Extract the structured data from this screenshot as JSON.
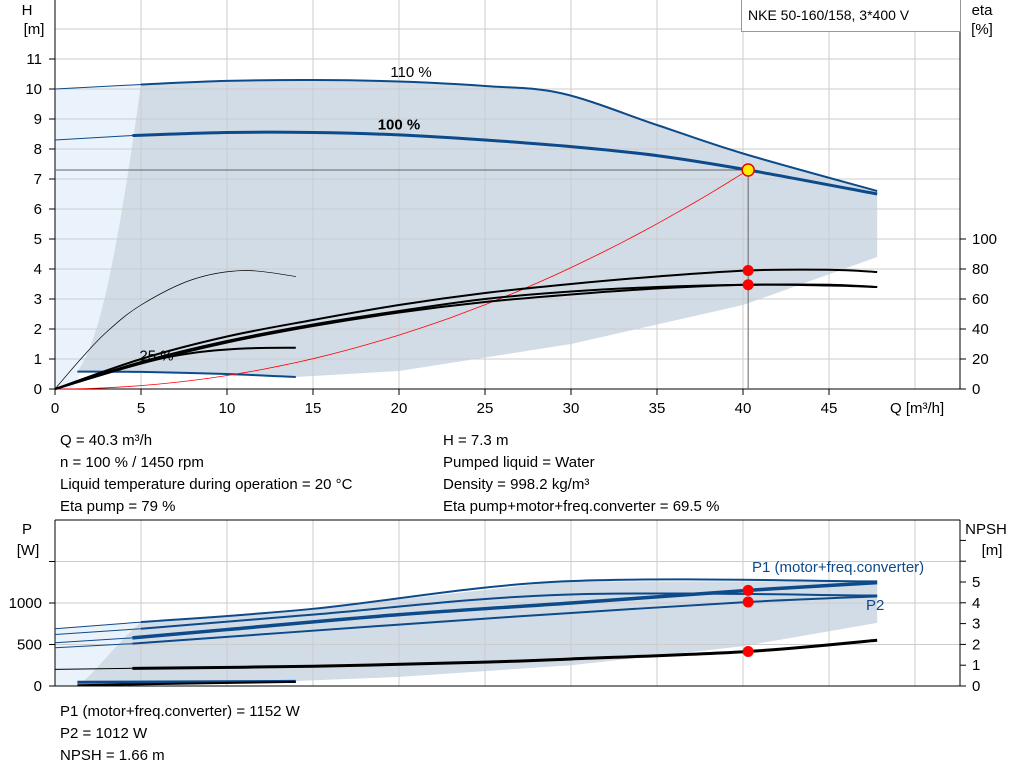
{
  "title": "NKE 50-160/158, 3*400 V",
  "info_top": {
    "left": [
      "Q = 40.3 m³/h",
      "n = 100 % / 1450 rpm",
      "Liquid temperature during operation = 20 °C",
      "Eta pump = 79 %"
    ],
    "right": [
      "H = 7.3 m",
      "Pumped liquid = Water",
      "Density = 998.2 kg/m³",
      "Eta pump+motor+freq.converter = 69.5 %"
    ]
  },
  "info_bottom": [
    "P1 (motor+freq.converter) = 1152 W",
    "P2 = 1012 W",
    "NPSH = 1.66 m"
  ],
  "colors": {
    "curve_blue": "#0d4a8a",
    "range_fill": "#d1dce6",
    "range_fill_light": "#eaf3fb",
    "system_curve": "#ff0000",
    "duty_point": "#ff0000",
    "duty_point_main": "#ffee00",
    "grid": "#cccccc"
  },
  "chart_data": [
    {
      "type": "line",
      "name": "head-efficiency",
      "xlabel": "Q [m³/h]",
      "ylabel_left": [
        "H",
        "[m]"
      ],
      "ylabel_right": [
        "eta",
        "[%]"
      ],
      "xlim": [
        0,
        52.5
      ],
      "ylim_left": [
        0,
        13
      ],
      "ylim_right": [
        0,
        260
      ],
      "x_ticks": [
        0,
        5,
        10,
        15,
        20,
        25,
        30,
        35,
        40,
        45
      ],
      "y_ticks_left": [
        0,
        1,
        2,
        3,
        4,
        5,
        6,
        7,
        8,
        9,
        10,
        11
      ],
      "y_ticks_right": [
        0,
        20,
        40,
        60,
        80,
        100
      ],
      "grid": true,
      "labels": [
        {
          "text": "110 %",
          "x": 20.7,
          "y": 10.4
        },
        {
          "text": "100 %",
          "x": 20,
          "y": 8.65
        },
        {
          "text": "25 %",
          "x": 5.9,
          "y": 0.95
        }
      ],
      "series": [
        {
          "label": "110 %",
          "axis": "left",
          "kind": "head",
          "points": [
            [
              0,
              10
            ],
            [
              5,
              10.15
            ],
            [
              10,
              10.27
            ],
            [
              15,
              10.3
            ],
            [
              20,
              10.25
            ],
            [
              25,
              10.1
            ],
            [
              29.5,
              9.85
            ],
            [
              35,
              8.8
            ],
            [
              40,
              7.85
            ],
            [
              47.8,
              6.6
            ]
          ]
        },
        {
          "label": "100 %",
          "axis": "left",
          "kind": "head-main",
          "points": [
            [
              0,
              8.3
            ],
            [
              4.5,
              8.45
            ],
            [
              10,
              8.55
            ],
            [
              15,
              8.55
            ],
            [
              20,
              8.47
            ],
            [
              25,
              8.3
            ],
            [
              30,
              8.08
            ],
            [
              35,
              7.78
            ],
            [
              40.3,
              7.3
            ],
            [
              47.8,
              6.5
            ]
          ]
        },
        {
          "label": "25 %",
          "axis": "left",
          "kind": "head",
          "points": [
            [
              1.3,
              0.58
            ],
            [
              5,
              0.57
            ],
            [
              10,
              0.5
            ],
            [
              14,
              0.4
            ]
          ]
        },
        {
          "axis": "left",
          "kind": "system",
          "points": "H = 7.3*(Q/40.3)^2"
        },
        {
          "axis": "right",
          "kind": "eta",
          "points": [
            [
              0,
              0
            ],
            [
              5,
              20
            ],
            [
              10,
              35
            ],
            [
              15,
              46
            ],
            [
              20,
              56
            ],
            [
              25,
              64
            ],
            [
              30,
              70
            ],
            [
              35,
              75
            ],
            [
              40.3,
              79
            ],
            [
              45,
              79.5
            ],
            [
              47.8,
              78
            ]
          ]
        },
        {
          "axis": "right",
          "kind": "eta",
          "points": [
            [
              0,
              0
            ],
            [
              5,
              18
            ],
            [
              10,
              32
            ],
            [
              15,
              43
            ],
            [
              20,
              52
            ],
            [
              25,
              60
            ],
            [
              30,
              65
            ],
            [
              35,
              68
            ],
            [
              40.3,
              69.5
            ],
            [
              45,
              69.5
            ],
            [
              47.8,
              68
            ]
          ]
        },
        {
          "axis": "right",
          "kind": "eta",
          "points": [
            [
              0,
              0
            ],
            [
              5,
              17
            ],
            [
              10,
              31
            ],
            [
              15,
              42
            ],
            [
              20,
              51
            ],
            [
              25,
              58
            ],
            [
              30,
              63
            ],
            [
              35,
              67
            ],
            [
              40.3,
              69.5
            ],
            [
              45,
              69
            ],
            [
              47.8,
              68
            ]
          ]
        },
        {
          "axis": "right",
          "kind": "eta-thin",
          "points": [
            [
              0,
              0
            ],
            [
              1.5,
              20
            ],
            [
              3,
              38
            ],
            [
              5,
              56
            ],
            [
              8,
              73
            ],
            [
              11,
              79
            ],
            [
              14,
              75
            ]
          ]
        },
        {
          "axis": "right",
          "kind": "eta",
          "points": [
            [
              0,
              0
            ],
            [
              5,
              17
            ],
            [
              8,
              24
            ],
            [
              11,
              27
            ],
            [
              14,
              27.5
            ]
          ]
        }
      ],
      "duty_points": [
        {
          "x": 40.3,
          "y": 7.3,
          "axis": "left",
          "main": true
        },
        {
          "x": 40.3,
          "y": 79,
          "axis": "right"
        },
        {
          "x": 40.3,
          "y": 69.5,
          "axis": "right"
        }
      ]
    },
    {
      "type": "line",
      "name": "power-npsh",
      "ylabel_left": [
        "P",
        "[W]"
      ],
      "ylabel_right": [
        "NPSH",
        "[m]"
      ],
      "xlim": [
        0,
        52.5
      ],
      "ylim_left": [
        0,
        2000
      ],
      "ylim_right": [
        0,
        8
      ],
      "y_ticks_left": [
        0,
        500,
        1000
      ],
      "y_ticks_right": [
        0,
        1,
        2,
        3,
        4,
        5
      ],
      "grid": true,
      "labels": [
        {
          "text": "P1 (motor+freq.converter)"
        },
        {
          "text": "P2"
        }
      ],
      "series": [
        {
          "label": "P1 110 %",
          "axis": "left",
          "points": [
            [
              0,
              690
            ],
            [
              5,
              770
            ],
            [
              15,
              930
            ],
            [
              29.5,
              1260
            ],
            [
              47.8,
              1260
            ]
          ]
        },
        {
          "label": "P1 (motor+freq.converter)",
          "axis": "left",
          "main": true,
          "points": [
            [
              0,
              520
            ],
            [
              4.5,
              580
            ],
            [
              10,
              680
            ],
            [
              20,
              860
            ],
            [
              30,
              1000
            ],
            [
              40.3,
              1152
            ],
            [
              47.8,
              1245
            ]
          ]
        },
        {
          "label": "P2 110 %",
          "axis": "left",
          "points": [
            [
              0,
              620
            ],
            [
              5,
              690
            ],
            [
              15,
              860
            ],
            [
              29.5,
              1100
            ],
            [
              47.8,
              1090
            ]
          ]
        },
        {
          "label": "P2",
          "axis": "left",
          "points": [
            [
              0,
              460
            ],
            [
              4.5,
              510
            ],
            [
              20,
              740
            ],
            [
              30,
              880
            ],
            [
              40.3,
              1012
            ],
            [
              47.8,
              1080
            ]
          ]
        },
        {
          "label": "NPSH",
          "axis": "right",
          "points": [
            [
              0,
              0.8
            ],
            [
              4.5,
              0.85
            ],
            [
              15,
              0.95
            ],
            [
              25,
              1.15
            ],
            [
              30,
              1.3
            ],
            [
              40.3,
              1.66
            ],
            [
              47.8,
              2.2
            ]
          ]
        },
        {
          "label": "P min speed",
          "axis": "left",
          "points": [
            [
              1.3,
              45
            ],
            [
              14,
              55
            ]
          ]
        }
      ],
      "duty_points": [
        {
          "x": 40.3,
          "y": 1152,
          "axis": "left"
        },
        {
          "x": 40.3,
          "y": 1012,
          "axis": "left"
        },
        {
          "x": 40.3,
          "y": 1.66,
          "axis": "right"
        }
      ]
    }
  ]
}
